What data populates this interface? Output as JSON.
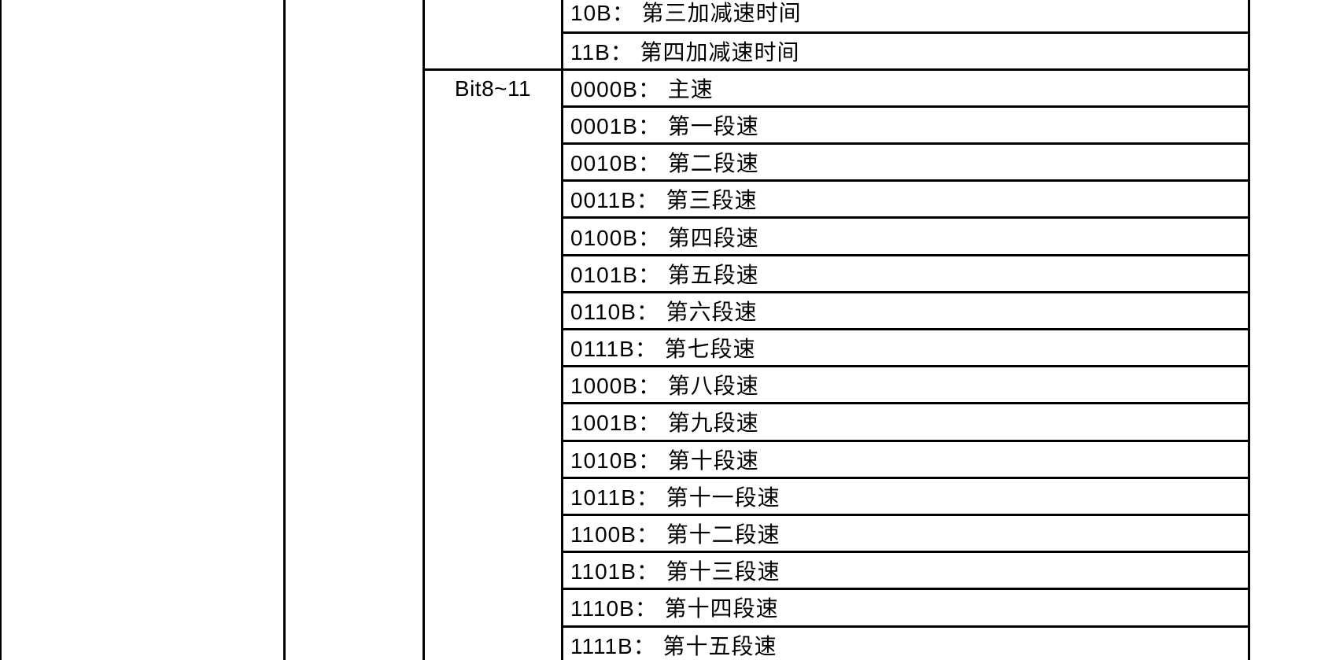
{
  "colors": {
    "background": "#ffffff",
    "border": "#000000",
    "text": "#000000"
  },
  "table": {
    "bit_group_header": "Bit8~11",
    "upper_rows": [
      "10B： 第三加减速时间",
      "11B： 第四加减速时间"
    ],
    "bit8_11_rows": [
      "0000B： 主速",
      "0001B： 第一段速",
      "0010B： 第二段速",
      "0011B： 第三段速",
      "0100B： 第四段速",
      "0101B： 第五段速",
      "0110B： 第六段速",
      "0111B： 第七段速",
      "1000B： 第八段速",
      "1001B： 第九段速",
      "1010B： 第十段速",
      "1011B： 第十一段速",
      "1100B： 第十二段速",
      "1101B： 第十三段速",
      "1110B： 第十四段速",
      "1111B： 第十五段速"
    ]
  }
}
